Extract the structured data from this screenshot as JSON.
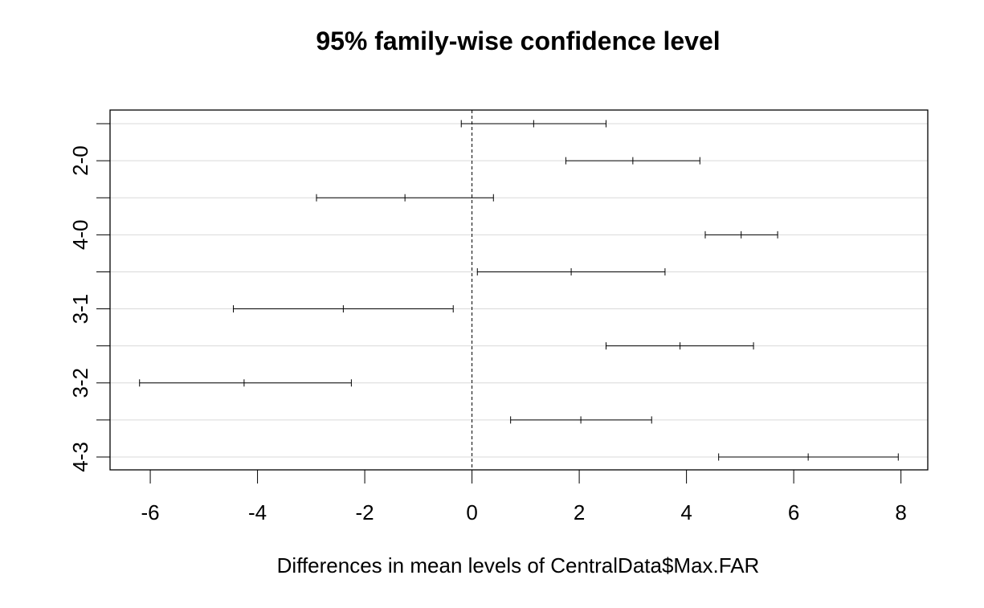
{
  "chart_data": {
    "type": "errorbar",
    "title": "95% family-wise confidence level",
    "xlabel": "Differences in mean levels of CentralData$Max.FAR",
    "ylabel": "",
    "xlim": [
      -6.75,
      8.5
    ],
    "xticks": [
      -6,
      -4,
      -2,
      0,
      2,
      4,
      6,
      8
    ],
    "grid": "horizontal",
    "reference_line": 0,
    "comparisons": [
      {
        "label": "",
        "lwr": -0.2,
        "diff": 1.15,
        "upr": 2.5
      },
      {
        "label": "2-0",
        "lwr": 1.75,
        "diff": 3.0,
        "upr": 4.25
      },
      {
        "label": "",
        "lwr": -2.9,
        "diff": -1.25,
        "upr": 0.4
      },
      {
        "label": "4-0",
        "lwr": 4.35,
        "diff": 5.02,
        "upr": 5.7
      },
      {
        "label": "",
        "lwr": 0.1,
        "diff": 1.85,
        "upr": 3.6
      },
      {
        "label": "3-1",
        "lwr": -4.45,
        "diff": -2.4,
        "upr": -0.35
      },
      {
        "label": "",
        "lwr": 2.5,
        "diff": 3.88,
        "upr": 5.25
      },
      {
        "label": "3-2",
        "lwr": -6.2,
        "diff": -4.25,
        "upr": -2.25
      },
      {
        "label": "",
        "lwr": 0.72,
        "diff": 2.03,
        "upr": 3.35
      },
      {
        "label": "4-3",
        "lwr": 4.6,
        "diff": 6.27,
        "upr": 7.95
      }
    ]
  }
}
